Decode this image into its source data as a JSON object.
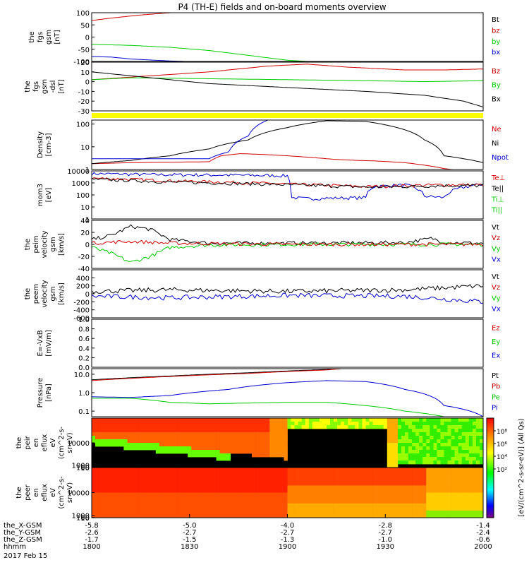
{
  "title": "P4 (TH-E) fields and on-board moments overview",
  "colors": {
    "black": "#000000",
    "red": "#d00000",
    "green": "#00cc00",
    "blue": "#0000d0",
    "yellow": "#ffff00",
    "spec_bg": "#000000"
  },
  "chart_data": [
    {
      "type": "line",
      "ylabel": [
        "the",
        "fgs",
        "gsm",
        "[nT]"
      ],
      "ylim": [
        -100,
        100
      ],
      "yticks": [
        "100",
        "50",
        "0",
        "-50",
        "-100"
      ],
      "legend": [
        {
          "label": "Bt",
          "color": "black"
        },
        {
          "label": "bz",
          "color": "red"
        },
        {
          "label": "by",
          "color": "green"
        },
        {
          "label": "bx",
          "color": "blue"
        }
      ],
      "series": [
        {
          "name": "bz",
          "color": "red",
          "x": [
            0,
            0.05,
            0.12,
            0.2,
            0.23
          ],
          "y": [
            68,
            78,
            90,
            100,
            108
          ]
        },
        {
          "name": "by",
          "color": "green",
          "x": [
            0,
            0.1,
            0.2,
            0.3,
            0.4,
            0.5,
            0.6
          ],
          "y": [
            -30,
            -34,
            -42,
            -55,
            -75,
            -95,
            -105
          ]
        },
        {
          "name": "bx",
          "color": "blue",
          "x": [
            0,
            0.05,
            0.1,
            0.2,
            0.26
          ],
          "y": [
            -80,
            -82,
            -90,
            -98,
            -101
          ]
        }
      ]
    },
    {
      "type": "line",
      "ylabel": [
        "the",
        "fgs",
        "gsm",
        "-dsl",
        "[nT]"
      ],
      "ylim": [
        -30,
        20
      ],
      "yticks": [
        "20",
        "10",
        "0",
        "-10",
        "-20",
        "-30"
      ],
      "legend": [
        {
          "label": "Bz",
          "color": "red"
        },
        {
          "label": "By",
          "color": "green"
        },
        {
          "label": "Bx",
          "color": "black"
        }
      ],
      "series": [
        {
          "name": "Bz",
          "color": "red",
          "x": [
            0,
            0.15,
            0.3,
            0.45,
            0.55,
            0.65,
            0.8,
            0.9,
            1.0
          ],
          "y": [
            2,
            6,
            10,
            16,
            18,
            15,
            12,
            12,
            13
          ]
        },
        {
          "name": "By",
          "color": "green",
          "x": [
            0,
            0.1,
            0.3,
            0.5,
            0.7,
            0.85,
            1.0
          ],
          "y": [
            2,
            4,
            3,
            2,
            1,
            0,
            1
          ]
        },
        {
          "name": "Bx",
          "color": "black",
          "x": [
            0,
            0.05,
            0.15,
            0.3,
            0.5,
            0.7,
            0.85,
            0.95,
            1.0
          ],
          "y": [
            10,
            8,
            4,
            -2,
            -6,
            -10,
            -14,
            -20,
            -26
          ]
        }
      ]
    },
    {
      "type": "line",
      "ylabel": [
        "Density",
        "[cm-3]"
      ],
      "scale": "log",
      "ylim": [
        1,
        150
      ],
      "yticks": [
        "100",
        "10",
        "1"
      ],
      "legend": [
        {
          "label": "Ne",
          "color": "red"
        },
        {
          "label": "Ni",
          "color": "black"
        },
        {
          "label": "Npot",
          "color": "blue"
        }
      ],
      "series": [
        {
          "name": "Ne",
          "color": "red",
          "x": [
            0,
            0.1,
            0.2,
            0.3,
            0.33,
            0.38,
            0.45,
            0.55,
            0.62,
            0.68,
            0.72,
            0.8,
            0.9,
            1.0
          ],
          "y": [
            1.8,
            2.0,
            2.1,
            2.2,
            4,
            5,
            4.5,
            3.5,
            2.8,
            2.5,
            2.4,
            2.0,
            1.1,
            0.6
          ]
        },
        {
          "name": "Ni",
          "color": "black",
          "x": [
            0,
            0.1,
            0.2,
            0.3,
            0.4,
            0.5,
            0.6,
            0.7,
            0.78,
            0.85,
            0.9,
            1.0
          ],
          "y": [
            1.8,
            2.5,
            4,
            8,
            20,
            70,
            140,
            130,
            70,
            20,
            4,
            2
          ]
        },
        {
          "name": "Npot",
          "color": "blue",
          "x": [
            0,
            0.1,
            0.3,
            0.35,
            0.4,
            0.45
          ],
          "y": [
            3,
            3,
            3,
            6,
            30,
            150
          ]
        }
      ]
    },
    {
      "type": "line",
      "ylabel": [
        "mom3",
        "[eV]"
      ],
      "scale": "log",
      "ylim": [
        1,
        10000
      ],
      "yticks": [
        "10000",
        "1000",
        "100",
        "10",
        "1"
      ],
      "legend": [
        {
          "label": "Te⊥",
          "color": "red"
        },
        {
          "label": "Te||",
          "color": "black"
        },
        {
          "label": "Ti⊥",
          "color": "green"
        },
        {
          "label": "Ti||",
          "color": "green"
        }
      ],
      "series": [
        {
          "name": "Ti",
          "color": "blue",
          "x": [
            0,
            0.15,
            0.35,
            0.5,
            0.51,
            0.55,
            0.7,
            0.72,
            0.8,
            0.85,
            0.9,
            1.0
          ],
          "y": [
            6000,
            5000,
            4500,
            4000,
            60,
            50,
            60,
            500,
            700,
            80,
            60,
            800
          ]
        },
        {
          "name": "Te",
          "color": "red",
          "x": [
            0,
            0.2,
            0.5,
            0.7,
            0.8,
            0.9,
            1.0
          ],
          "y": [
            2500,
            1500,
            800,
            500,
            600,
            700,
            700
          ]
        },
        {
          "name": "Te||",
          "color": "black",
          "x": [
            0,
            0.2,
            0.5,
            0.7,
            0.8,
            0.9,
            1.0
          ],
          "y": [
            2000,
            1200,
            700,
            450,
            500,
            600,
            600
          ]
        }
      ]
    },
    {
      "type": "line",
      "ylabel": [
        "the",
        "peim",
        "velocity",
        "gsm",
        "[km/s]"
      ],
      "ylim": [
        -40,
        40
      ],
      "yticks": [
        "40",
        "20",
        "0",
        "-20",
        "-40"
      ],
      "legend": [
        {
          "label": "Vt",
          "color": "black"
        },
        {
          "label": "Vz",
          "color": "red"
        },
        {
          "label": "Vy",
          "color": "green"
        },
        {
          "label": "Vx",
          "color": "blue"
        }
      ],
      "series": [
        {
          "name": "Vt",
          "color": "black",
          "x": [
            0,
            0.05,
            0.1,
            0.15,
            0.2,
            0.3,
            0.5,
            0.8,
            0.87,
            0.9,
            1.0
          ],
          "y": [
            8,
            15,
            30,
            25,
            8,
            2,
            2,
            3,
            10,
            3,
            2
          ]
        },
        {
          "name": "Vy",
          "color": "green",
          "x": [
            0,
            0.05,
            0.1,
            0.15,
            0.2,
            0.3,
            0.5,
            1.0
          ],
          "y": [
            -5,
            -15,
            -30,
            -20,
            -5,
            -1,
            0,
            0
          ]
        },
        {
          "name": "Vz",
          "color": "red",
          "x": [
            0,
            0.1,
            0.2,
            0.5,
            1.0
          ],
          "y": [
            2,
            5,
            2,
            0,
            0
          ]
        }
      ]
    },
    {
      "type": "line",
      "ylabel": [
        "the",
        "peem",
        "velocity",
        "gsm",
        "[km/s]"
      ],
      "ylim": [
        -600,
        600
      ],
      "yticks": [
        "400",
        "200",
        "0",
        "-200",
        "-400",
        "-600"
      ],
      "legend": [
        {
          "label": "Vt",
          "color": "black"
        },
        {
          "label": "Vz",
          "color": "red"
        },
        {
          "label": "Vy",
          "color": "green"
        },
        {
          "label": "Vx",
          "color": "blue"
        }
      ],
      "series": [
        {
          "name": "Vt",
          "color": "black",
          "x": [
            0,
            0.2,
            0.5,
            0.8,
            1.0
          ],
          "y": [
            60,
            100,
            60,
            100,
            200
          ]
        },
        {
          "name": "Vx",
          "color": "blue",
          "x": [
            0,
            0.2,
            0.5,
            0.8,
            1.0
          ],
          "y": [
            -60,
            -100,
            -40,
            -60,
            -200
          ]
        }
      ]
    },
    {
      "type": "line",
      "ylabel": [
        "E=-VxB",
        "[mV/m]"
      ],
      "ylim": [
        0,
        1
      ],
      "yticks": [
        "1.0",
        "0.8",
        "0.6",
        "0.4",
        "0.2",
        "0.0"
      ],
      "legend": [
        {
          "label": "Ez",
          "color": "red"
        },
        {
          "label": "Ey",
          "color": "green"
        },
        {
          "label": "Ex",
          "color": "blue"
        }
      ],
      "series": []
    },
    {
      "type": "line",
      "ylabel": [
        "Pressure",
        "[nPa]"
      ],
      "scale": "log",
      "ylim": [
        0.05,
        20
      ],
      "yticks": [
        "10.0",
        "1.0",
        "0.1"
      ],
      "legend": [
        {
          "label": "Pt",
          "color": "black"
        },
        {
          "label": "Pb",
          "color": "red"
        },
        {
          "label": "Pe",
          "color": "green"
        },
        {
          "label": "Pi",
          "color": "blue"
        }
      ],
      "series": [
        {
          "name": "Pt",
          "color": "black",
          "x": [
            0,
            0.2,
            0.4,
            0.6,
            0.65
          ],
          "y": [
            5,
            8,
            12,
            18,
            22
          ]
        },
        {
          "name": "Pb",
          "color": "red",
          "x": [
            0,
            0.2,
            0.4,
            0.6,
            0.65
          ],
          "y": [
            4.5,
            7.5,
            11,
            17,
            21
          ]
        },
        {
          "name": "Pi",
          "color": "blue",
          "x": [
            0,
            0.1,
            0.2,
            0.35,
            0.5,
            0.6,
            0.7,
            0.8,
            0.9,
            1.0
          ],
          "y": [
            0.6,
            0.55,
            0.7,
            1.5,
            3.5,
            4.5,
            4,
            1.5,
            0.2,
            0.05
          ]
        },
        {
          "name": "Pe",
          "color": "green",
          "x": [
            0,
            0.1,
            0.2,
            0.3,
            0.5,
            0.6,
            0.7,
            0.8,
            0.9
          ],
          "y": [
            0.5,
            0.5,
            0.3,
            0.25,
            0.3,
            0.3,
            0.2,
            0.1,
            0.05
          ]
        }
      ]
    },
    {
      "type": "heatmap",
      "ylabel": [
        "the",
        "peir",
        "en",
        "eflux",
        "eV",
        "(cm^2-s-",
        "sr-eV)"
      ],
      "ylim": [
        10,
        20000
      ],
      "yticks": [
        "10000",
        "1000",
        "100",
        "10"
      ]
    },
    {
      "type": "heatmap",
      "ylabel": [
        "the",
        "peer",
        "en",
        "eflux",
        "eV",
        "(cm^2-s-",
        "sr-eV)"
      ],
      "ylim": [
        10,
        20000
      ],
      "yticks": [
        "10000",
        "1000",
        "100",
        "10"
      ]
    }
  ],
  "colorbar": {
    "tick_labels": [
      "10⁸",
      "10⁶",
      "10⁴",
      "10²"
    ],
    "label": "[eV/(cm^2-s-sr-eV)] (All Qs)"
  },
  "xaxis": {
    "rows": [
      {
        "label": "the_X-GSM",
        "values": [
          "-5.8",
          "-5.0",
          "-4.0",
          "-2.8",
          "-1.4"
        ]
      },
      {
        "label": "the_Y-GSM",
        "values": [
          "-2.6",
          "-2.7",
          "-2.7",
          "-2.7",
          "-2.4"
        ]
      },
      {
        "label": "the_Z-GSM",
        "values": [
          "-1.7",
          "-1.5",
          "-1.3",
          "-1.0",
          "-0.6"
        ]
      },
      {
        "label": "hhmm",
        "values": [
          "1800",
          "1830",
          "1900",
          "1930",
          "2000"
        ]
      }
    ],
    "date": "2017 Feb 15"
  }
}
